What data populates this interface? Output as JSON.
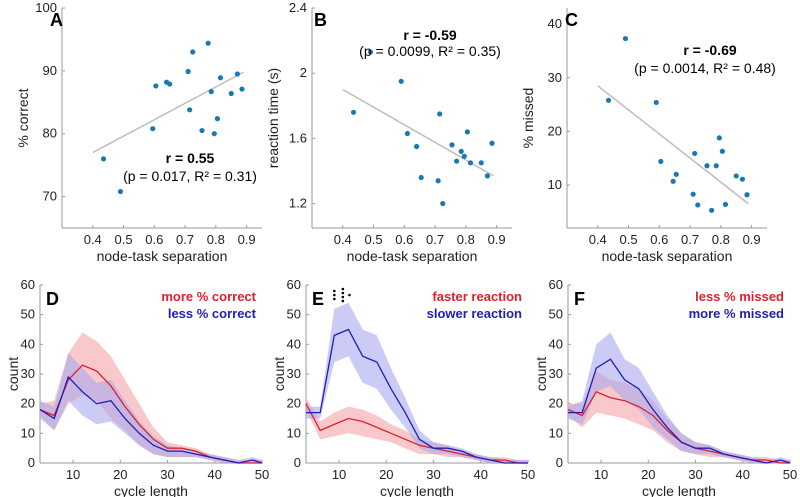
{
  "colors": {
    "scatter": "#1a78b4",
    "fit": "#bdbdbd",
    "red": "#e0202a",
    "redband": "#f3a3a6",
    "blue": "#1f1fb4",
    "blueband": "#a9a9ee",
    "axis": "#9a9a9a"
  },
  "chart_data": [
    {
      "id": "A",
      "type": "scatter",
      "panel_label": "A",
      "xlabel": "node-task separation",
      "ylabel": "% correct",
      "xlim": [
        0.3,
        0.95
      ],
      "ylim": [
        65,
        100
      ],
      "xticks": [
        0.4,
        0.5,
        0.6,
        0.7,
        0.8,
        0.9
      ],
      "xticklabels": [
        "0.4",
        "0.5",
        "0.6",
        "0.7",
        "0.8",
        "0.9"
      ],
      "yticks": [
        70,
        80,
        90,
        100
      ],
      "yticklabels": [
        "70",
        "80",
        "90",
        "100"
      ],
      "x": [
        0.435,
        0.49,
        0.595,
        0.605,
        0.64,
        0.65,
        0.71,
        0.715,
        0.725,
        0.755,
        0.775,
        0.785,
        0.795,
        0.805,
        0.815,
        0.85,
        0.87,
        0.885
      ],
      "y": [
        76.0,
        70.8,
        80.8,
        87.6,
        88.2,
        87.9,
        89.9,
        83.8,
        93.0,
        80.5,
        94.4,
        86.7,
        80.0,
        82.4,
        88.9,
        86.4,
        89.5,
        87.1
      ],
      "fit": {
        "x": [
          0.4,
          0.89
        ],
        "y": [
          77.0,
          89.8
        ]
      },
      "stat_r": "r = 0.55",
      "stat_p": "(p = 0.017, R² = 0.31)"
    },
    {
      "id": "B",
      "type": "scatter",
      "panel_label": "B",
      "xlabel": "node-task separation",
      "ylabel": "reaction time (s)",
      "xlim": [
        0.3,
        0.95
      ],
      "ylim": [
        1.05,
        2.4
      ],
      "xticks": [
        0.4,
        0.5,
        0.6,
        0.7,
        0.8,
        0.9
      ],
      "xticklabels": [
        "0.4",
        "0.5",
        "0.6",
        "0.7",
        "0.8",
        "0.9"
      ],
      "yticks": [
        1.2,
        1.6,
        2.0,
        2.4
      ],
      "yticklabels": [
        "1.2",
        "1.6",
        "2",
        "2.4"
      ],
      "x": [
        0.435,
        0.49,
        0.59,
        0.61,
        0.64,
        0.655,
        0.71,
        0.715,
        0.725,
        0.755,
        0.77,
        0.785,
        0.795,
        0.805,
        0.815,
        0.85,
        0.87,
        0.885
      ],
      "y": [
        1.76,
        2.13,
        1.95,
        1.63,
        1.55,
        1.36,
        1.34,
        1.75,
        1.2,
        1.56,
        1.46,
        1.52,
        1.49,
        1.64,
        1.45,
        1.45,
        1.37,
        1.57
      ],
      "fit": {
        "x": [
          0.4,
          0.89
        ],
        "y": [
          1.9,
          1.37
        ]
      },
      "stat_r": "r = -0.59",
      "stat_p": "(p = 0.0099, R² = 0.35)"
    },
    {
      "id": "C",
      "type": "scatter",
      "panel_label": "C",
      "xlabel": "node-task separation",
      "ylabel": "% missed",
      "xlim": [
        0.3,
        0.95
      ],
      "ylim": [
        2,
        43
      ],
      "xticks": [
        0.4,
        0.5,
        0.6,
        0.7,
        0.8,
        0.9
      ],
      "xticklabels": [
        "0.4",
        "0.5",
        "0.6",
        "0.7",
        "0.8",
        "0.9"
      ],
      "yticks": [
        10,
        20,
        30,
        40
      ],
      "yticklabels": [
        "10",
        "20",
        "30",
        "40"
      ],
      "x": [
        0.435,
        0.49,
        0.59,
        0.605,
        0.645,
        0.655,
        0.71,
        0.715,
        0.725,
        0.755,
        0.77,
        0.785,
        0.795,
        0.805,
        0.815,
        0.85,
        0.87,
        0.885
      ],
      "y": [
        25.8,
        37.3,
        25.4,
        14.4,
        10.7,
        12.0,
        8.3,
        15.9,
        6.3,
        13.6,
        5.3,
        13.6,
        18.8,
        16.3,
        6.4,
        11.7,
        11.1,
        8.2
      ],
      "fit": {
        "x": [
          0.4,
          0.89
        ],
        "y": [
          28.5,
          6.5
        ]
      },
      "stat_r": "r = -0.69",
      "stat_p": "(p = 0.0014, R² = 0.48)"
    },
    {
      "id": "D",
      "type": "line",
      "panel_label": "D",
      "xlabel": "cycle length",
      "ylabel": "count",
      "xlim": [
        3,
        50
      ],
      "ylim": [
        0,
        60
      ],
      "xticks": [
        10,
        20,
        30,
        40,
        50
      ],
      "xticklabels": [
        "10",
        "20",
        "30",
        "40",
        "50"
      ],
      "yticks": [
        0,
        10,
        20,
        30,
        40,
        50,
        60
      ],
      "yticklabels": [
        "0",
        "10",
        "20",
        "30",
        "40",
        "50",
        "60"
      ],
      "x": [
        3,
        6,
        9,
        12,
        15,
        18,
        21,
        24,
        27,
        30,
        33,
        36,
        39,
        42,
        45,
        48,
        50
      ],
      "series": [
        {
          "name": "more % correct",
          "color": "red",
          "mean": [
            18,
            16,
            28,
            33,
            31,
            26,
            19,
            13,
            8,
            5,
            5,
            4,
            2,
            1,
            0,
            0,
            0
          ],
          "lo": [
            16,
            11,
            20,
            23,
            21,
            15,
            11,
            6,
            3,
            2,
            2,
            2,
            1,
            0,
            0,
            0,
            0
          ],
          "hi": [
            20,
            21,
            37,
            44,
            41,
            36,
            28,
            20,
            12,
            7,
            6,
            5,
            3,
            2,
            1,
            1,
            1
          ]
        },
        {
          "name": "less % correct",
          "color": "blue",
          "mean": [
            18,
            15,
            29,
            24,
            20,
            21,
            15,
            10,
            6,
            4,
            4,
            3,
            2,
            1,
            0,
            1,
            0
          ],
          "lo": [
            15,
            11,
            21,
            16,
            13,
            14,
            10,
            6,
            3,
            2,
            2,
            2,
            1,
            0,
            0,
            0,
            0
          ],
          "hi": [
            21,
            19,
            37,
            32,
            27,
            28,
            21,
            14,
            9,
            6,
            5,
            4,
            3,
            2,
            1,
            2,
            1
          ]
        }
      ],
      "legend": [
        "more % correct",
        "less % correct"
      ]
    },
    {
      "id": "E",
      "type": "line",
      "panel_label": "E",
      "xlabel": "cycle length",
      "ylabel": "count",
      "xlim": [
        3,
        50
      ],
      "ylim": [
        0,
        60
      ],
      "xticks": [
        10,
        20,
        30,
        40,
        50
      ],
      "xticklabels": [
        "10",
        "20",
        "30",
        "40",
        "50"
      ],
      "yticks": [
        0,
        10,
        20,
        30,
        40,
        50,
        60
      ],
      "yticklabels": [
        "0",
        "10",
        "20",
        "30",
        "40",
        "50",
        "60"
      ],
      "x": [
        3,
        6,
        9,
        12,
        15,
        18,
        21,
        24,
        27,
        30,
        33,
        36,
        39,
        42,
        45,
        48,
        50
      ],
      "series": [
        {
          "name": "faster reaction",
          "color": "red",
          "mean": [
            20,
            11,
            13,
            15,
            14,
            12,
            10,
            8,
            6,
            5,
            4,
            3,
            2,
            1,
            1,
            0,
            0
          ],
          "lo": [
            18,
            8,
            9,
            10,
            9,
            8,
            7,
            5,
            3,
            3,
            2,
            2,
            1,
            0,
            0,
            0,
            0
          ],
          "hi": [
            22,
            14,
            17,
            19,
            18,
            16,
            13,
            11,
            8,
            7,
            6,
            4,
            3,
            2,
            2,
            1,
            1
          ]
        },
        {
          "name": "slower reaction",
          "color": "blue",
          "mean": [
            17,
            17,
            43,
            45,
            36,
            34,
            25,
            17,
            8,
            5,
            5,
            4,
            2,
            1,
            0,
            0,
            0
          ],
          "lo": [
            15,
            15,
            34,
            36,
            27,
            25,
            18,
            12,
            5,
            3,
            3,
            2,
            1,
            0,
            0,
            0,
            0
          ],
          "hi": [
            19,
            19,
            52,
            54,
            45,
            43,
            32,
            22,
            11,
            7,
            6,
            5,
            3,
            2,
            1,
            1,
            1
          ]
        }
      ],
      "annotations": [
        "significance markers ⋮ above cycle lengths ~8–14"
      ],
      "legend": [
        "faster reaction",
        "slower reaction"
      ]
    },
    {
      "id": "F",
      "type": "line",
      "panel_label": "F",
      "xlabel": "cycle length",
      "ylabel": "count",
      "xlim": [
        3,
        50
      ],
      "ylim": [
        0,
        60
      ],
      "xticks": [
        10,
        20,
        30,
        40,
        50
      ],
      "xticklabels": [
        "10",
        "20",
        "30",
        "40",
        "50"
      ],
      "yticks": [
        0,
        10,
        20,
        30,
        40,
        50,
        60
      ],
      "yticklabels": [
        "0",
        "10",
        "20",
        "30",
        "40",
        "50",
        "60"
      ],
      "x": [
        3,
        6,
        9,
        12,
        15,
        18,
        21,
        24,
        27,
        30,
        33,
        36,
        39,
        42,
        45,
        48,
        50
      ],
      "series": [
        {
          "name": "less % missed",
          "color": "red",
          "mean": [
            18,
            16,
            24,
            22,
            21,
            19,
            16,
            11,
            7,
            5,
            4,
            3,
            2,
            1,
            1,
            0,
            0
          ],
          "lo": [
            16,
            12,
            17,
            16,
            15,
            13,
            11,
            7,
            4,
            3,
            2,
            2,
            1,
            0,
            0,
            0,
            0
          ],
          "hi": [
            20,
            20,
            31,
            28,
            27,
            25,
            21,
            15,
            10,
            7,
            6,
            4,
            3,
            2,
            2,
            1,
            1
          ]
        },
        {
          "name": "more % missed",
          "color": "blue",
          "mean": [
            17,
            17,
            32,
            35,
            28,
            25,
            18,
            12,
            7,
            5,
            5,
            3,
            2,
            1,
            0,
            1,
            0
          ],
          "lo": [
            15,
            13,
            24,
            26,
            21,
            18,
            12,
            8,
            4,
            3,
            3,
            2,
            1,
            0,
            0,
            0,
            0
          ],
          "hi": [
            19,
            21,
            40,
            44,
            35,
            32,
            24,
            16,
            10,
            7,
            6,
            4,
            3,
            2,
            1,
            2,
            1
          ]
        }
      ],
      "legend": [
        "less % missed",
        "more % missed"
      ]
    }
  ]
}
